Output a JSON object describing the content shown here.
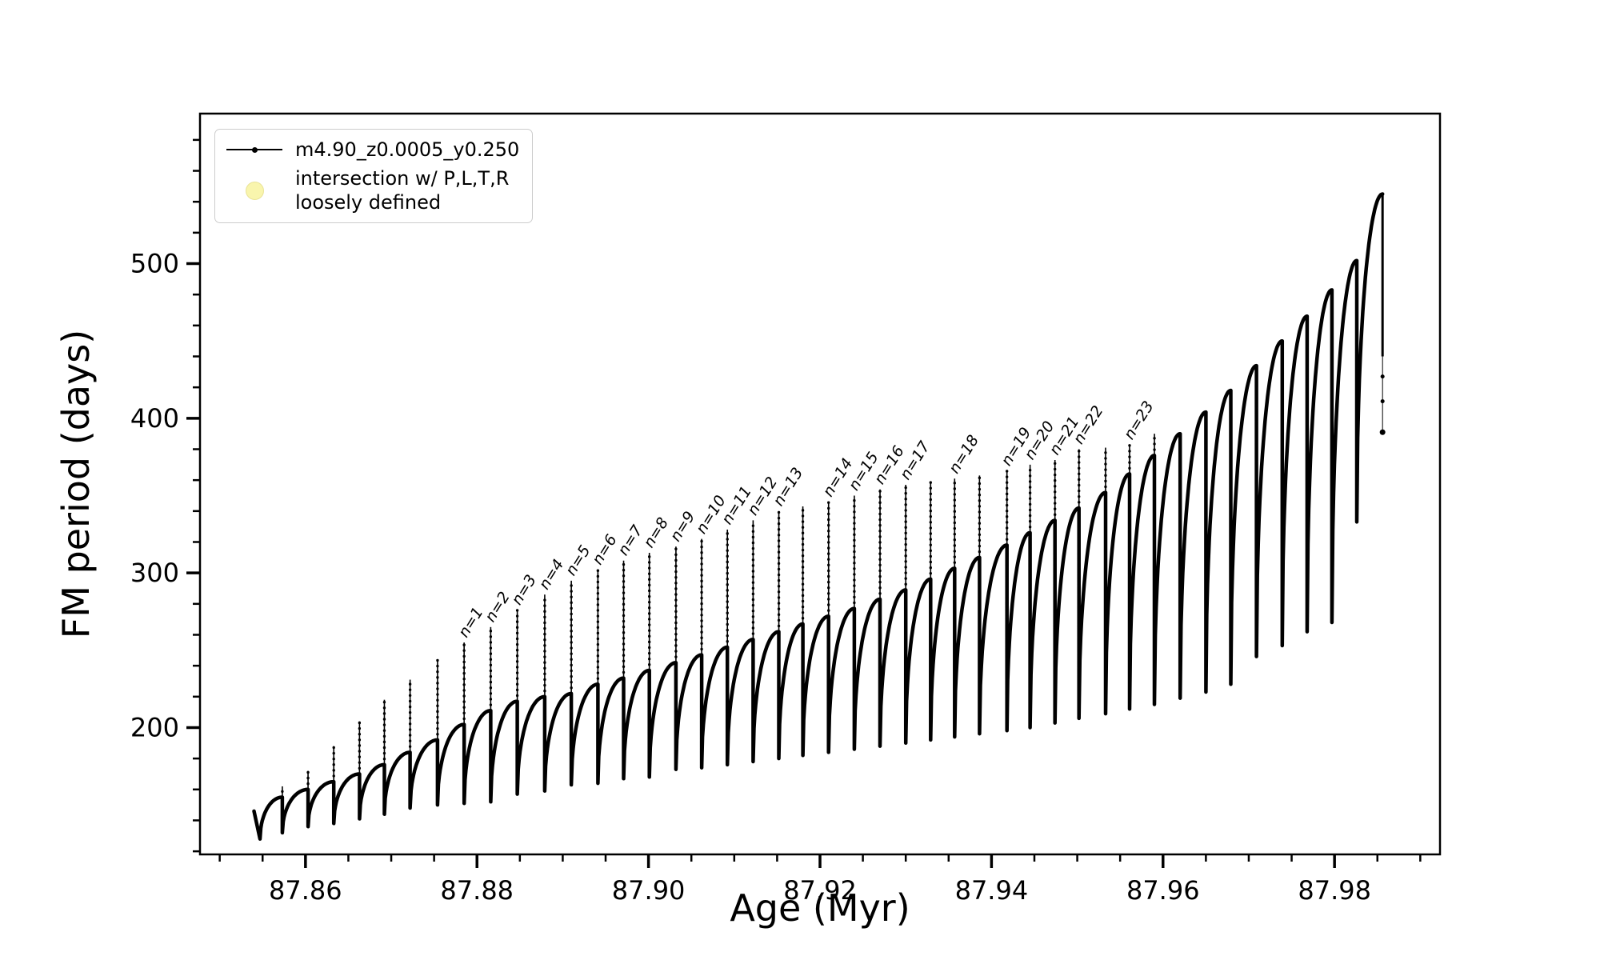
{
  "figure": {
    "background": "#ffffff",
    "series_color": "#000000",
    "intersection_marker_color": "#f9f5ad"
  },
  "chart_data": {
    "type": "line",
    "title": "",
    "xlabel": "Age (Myr)",
    "ylabel": "FM period (days)",
    "xlim": [
      87.8477,
      87.9923
    ],
    "ylim": [
      118,
      597
    ],
    "xticks": [
      87.86,
      87.88,
      87.9,
      87.92,
      87.94,
      87.96,
      87.98
    ],
    "xtick_labels": [
      "87.86",
      "87.88",
      "87.90",
      "87.92",
      "87.94",
      "87.96",
      "87.98"
    ],
    "yticks": [
      200,
      300,
      400,
      500
    ],
    "ytick_labels": [
      "200",
      "300",
      "400",
      "500"
    ],
    "x_minor_step": 0.005,
    "y_minor_step": 20,
    "grid": false,
    "legend_position": "upper-left",
    "legend": [
      {
        "label": "m4.90_z0.0005_y0.250",
        "marker": "line-dot",
        "color": "#000000"
      },
      {
        "label": "intersection w/ P,L,T,R loosely defined",
        "line1": "intersection w/ P,L,T,R",
        "line2": "loosely defined",
        "marker": "circle",
        "color": "#f9f5ad"
      }
    ],
    "series_name": "m4.90_z0.0005_y0.250",
    "start": {
      "x": 87.854,
      "y": 146
    },
    "cycles": [
      {
        "x0": 87.8547,
        "y0": 128,
        "x1": 87.8573,
        "top": 155,
        "peak": 162,
        "label": null
      },
      {
        "x0": 87.8573,
        "y0": 132,
        "x1": 87.8603,
        "top": 160,
        "peak": 172,
        "label": null
      },
      {
        "x0": 87.8603,
        "y0": 136,
        "x1": 87.8633,
        "top": 165,
        "peak": 188,
        "label": null
      },
      {
        "x0": 87.8633,
        "y0": 138,
        "x1": 87.8663,
        "top": 170,
        "peak": 204,
        "label": null
      },
      {
        "x0": 87.8663,
        "y0": 141,
        "x1": 87.8692,
        "top": 176,
        "peak": 218,
        "label": null
      },
      {
        "x0": 87.8692,
        "y0": 144,
        "x1": 87.8722,
        "top": 184,
        "peak": 231,
        "label": null
      },
      {
        "x0": 87.8722,
        "y0": 148,
        "x1": 87.8754,
        "top": 192,
        "peak": 244,
        "label": null
      },
      {
        "x0": 87.8754,
        "y0": 150,
        "x1": 87.8785,
        "top": 202,
        "peak": 255,
        "label": "n=1"
      },
      {
        "x0": 87.8785,
        "y0": 151,
        "x1": 87.8816,
        "top": 211,
        "peak": 265,
        "label": "n=2"
      },
      {
        "x0": 87.8816,
        "y0": 152,
        "x1": 87.8847,
        "top": 217,
        "peak": 276,
        "label": "n=3"
      },
      {
        "x0": 87.8847,
        "y0": 157,
        "x1": 87.8879,
        "top": 220,
        "peak": 286,
        "label": "n=4"
      },
      {
        "x0": 87.8879,
        "y0": 159,
        "x1": 87.891,
        "top": 222,
        "peak": 295,
        "label": "n=5"
      },
      {
        "x0": 87.891,
        "y0": 163,
        "x1": 87.8941,
        "top": 228,
        "peak": 302,
        "label": "n=6"
      },
      {
        "x0": 87.8941,
        "y0": 164,
        "x1": 87.8971,
        "top": 232,
        "peak": 308,
        "label": "n=7"
      },
      {
        "x0": 87.8971,
        "y0": 167,
        "x1": 87.9001,
        "top": 237,
        "peak": 313,
        "label": "n=8"
      },
      {
        "x0": 87.9001,
        "y0": 168,
        "x1": 87.9032,
        "top": 242,
        "peak": 317,
        "label": "n=9"
      },
      {
        "x0": 87.9032,
        "y0": 173,
        "x1": 87.9062,
        "top": 247,
        "peak": 322,
        "label": "n=10"
      },
      {
        "x0": 87.9062,
        "y0": 174,
        "x1": 87.9092,
        "top": 252,
        "peak": 328,
        "label": "n=11"
      },
      {
        "x0": 87.9092,
        "y0": 176,
        "x1": 87.9122,
        "top": 257,
        "peak": 334,
        "label": "n=12"
      },
      {
        "x0": 87.9122,
        "y0": 178,
        "x1": 87.9152,
        "top": 262,
        "peak": 340,
        "label": "n=13"
      },
      {
        "x0": 87.9152,
        "y0": 180,
        "x1": 87.918,
        "top": 267,
        "peak": 343,
        "label": null
      },
      {
        "x0": 87.918,
        "y0": 182,
        "x1": 87.921,
        "top": 272,
        "peak": 346,
        "label": "n=14"
      },
      {
        "x0": 87.921,
        "y0": 184,
        "x1": 87.924,
        "top": 277,
        "peak": 350,
        "label": "n=15"
      },
      {
        "x0": 87.924,
        "y0": 186,
        "x1": 87.927,
        "top": 283,
        "peak": 354,
        "label": "n=16"
      },
      {
        "x0": 87.927,
        "y0": 188,
        "x1": 87.93,
        "top": 289,
        "peak": 357,
        "label": "n=17"
      },
      {
        "x0": 87.93,
        "y0": 190,
        "x1": 87.9329,
        "top": 296,
        "peak": 359,
        "label": null
      },
      {
        "x0": 87.9329,
        "y0": 192,
        "x1": 87.9357,
        "top": 303,
        "peak": 361,
        "label": "n=18"
      },
      {
        "x0": 87.9357,
        "y0": 194,
        "x1": 87.9386,
        "top": 310,
        "peak": 363,
        "label": null
      },
      {
        "x0": 87.9386,
        "y0": 196,
        "x1": 87.9418,
        "top": 318,
        "peak": 366,
        "label": "n=19"
      },
      {
        "x0": 87.9418,
        "y0": 198,
        "x1": 87.9445,
        "top": 326,
        "peak": 370,
        "label": "n=20"
      },
      {
        "x0": 87.9445,
        "y0": 200,
        "x1": 87.9474,
        "top": 334,
        "peak": 373,
        "label": "n=21"
      },
      {
        "x0": 87.9474,
        "y0": 203,
        "x1": 87.9502,
        "top": 342,
        "peak": 380,
        "label": "n=22"
      },
      {
        "x0": 87.9502,
        "y0": 206,
        "x1": 87.9533,
        "top": 352,
        "peak": 381,
        "label": null
      },
      {
        "x0": 87.9533,
        "y0": 209,
        "x1": 87.9561,
        "top": 364,
        "peak": 383,
        "label": "n=23"
      },
      {
        "x0": 87.9561,
        "y0": 212,
        "x1": 87.959,
        "top": 376,
        "peak": 390,
        "label": null
      },
      {
        "x0": 87.959,
        "y0": 215,
        "x1": 87.962,
        "top": 390,
        "peak": null,
        "label": null
      },
      {
        "x0": 87.962,
        "y0": 219,
        "x1": 87.965,
        "top": 404,
        "peak": null,
        "label": null
      },
      {
        "x0": 87.965,
        "y0": 223,
        "x1": 87.9679,
        "top": 418,
        "peak": null,
        "label": null
      },
      {
        "x0": 87.9679,
        "y0": 228,
        "x1": 87.9709,
        "top": 434,
        "peak": null,
        "label": null
      },
      {
        "x0": 87.9709,
        "y0": 246,
        "x1": 87.9739,
        "top": 450,
        "peak": null,
        "label": null
      },
      {
        "x0": 87.9739,
        "y0": 253,
        "x1": 87.9768,
        "top": 466,
        "peak": null,
        "label": null
      },
      {
        "x0": 87.9768,
        "y0": 262,
        "x1": 87.9797,
        "top": 483,
        "peak": null,
        "label": null
      },
      {
        "x0": 87.9797,
        "y0": 268,
        "x1": 87.9826,
        "top": 502,
        "peak": null,
        "label": null
      },
      {
        "x0": 87.9826,
        "y0": 333,
        "x1": 87.9856,
        "top": 545,
        "peak": null,
        "label": null
      }
    ],
    "final_descent": {
      "x": 87.9856,
      "from": 545,
      "solid_to": 440,
      "dots": [
        427,
        411,
        391
      ]
    }
  }
}
